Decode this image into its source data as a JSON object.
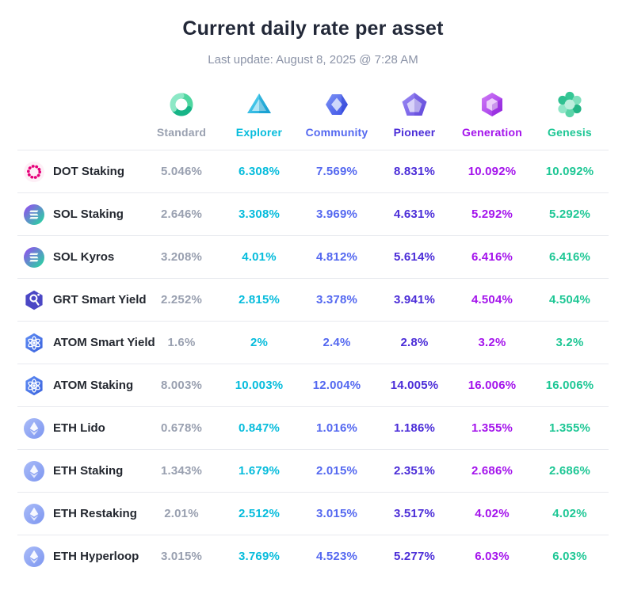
{
  "page": {
    "title": "Current daily rate per asset",
    "subtitle": "Last update: August 8, 2025 @ 7:28 AM"
  },
  "tiers": [
    {
      "label": "Standard",
      "icon": "standard-tier-icon",
      "color": "#99a0b0"
    },
    {
      "label": "Explorer",
      "icon": "explorer-tier-icon",
      "color": "#06bcdc"
    },
    {
      "label": "Community",
      "icon": "community-tier-icon",
      "color": "#5468f0"
    },
    {
      "label": "Pioneer",
      "icon": "pioneer-tier-icon",
      "color": "#4b2dd8"
    },
    {
      "label": "Generation",
      "icon": "generation-tier-icon",
      "color": "#a413ec"
    },
    {
      "label": "Genesis",
      "icon": "genesis-tier-icon",
      "color": "#1ec795"
    }
  ],
  "rows": [
    {
      "asset": "DOT Staking",
      "icon": "polkadot-icon",
      "rates": [
        "5.046%",
        "6.308%",
        "7.569%",
        "8.831%",
        "10.092%",
        "10.092%"
      ]
    },
    {
      "asset": "SOL Staking",
      "icon": "solana-icon",
      "rates": [
        "2.646%",
        "3.308%",
        "3.969%",
        "4.631%",
        "5.292%",
        "5.292%"
      ]
    },
    {
      "asset": "SOL Kyros",
      "icon": "solana-icon",
      "rates": [
        "3.208%",
        "4.01%",
        "4.812%",
        "5.614%",
        "6.416%",
        "6.416%"
      ]
    },
    {
      "asset": "GRT Smart Yield",
      "icon": "graph-icon",
      "rates": [
        "2.252%",
        "2.815%",
        "3.378%",
        "3.941%",
        "4.504%",
        "4.504%"
      ]
    },
    {
      "asset": "ATOM Smart Yield",
      "icon": "cosmos-icon",
      "rates": [
        "1.6%",
        "2%",
        "2.4%",
        "2.8%",
        "3.2%",
        "3.2%"
      ]
    },
    {
      "asset": "ATOM Staking",
      "icon": "cosmos-icon",
      "rates": [
        "8.003%",
        "10.003%",
        "12.004%",
        "14.005%",
        "16.006%",
        "16.006%"
      ]
    },
    {
      "asset": "ETH Lido",
      "icon": "ethereum-icon",
      "rates": [
        "0.678%",
        "0.847%",
        "1.016%",
        "1.186%",
        "1.355%",
        "1.355%"
      ]
    },
    {
      "asset": "ETH Staking",
      "icon": "ethereum-icon",
      "rates": [
        "1.343%",
        "1.679%",
        "2.015%",
        "2.351%",
        "2.686%",
        "2.686%"
      ]
    },
    {
      "asset": "ETH Restaking",
      "icon": "ethereum-icon",
      "rates": [
        "2.01%",
        "2.512%",
        "3.015%",
        "3.517%",
        "4.02%",
        "4.02%"
      ]
    },
    {
      "asset": "ETH Hyperloop",
      "icon": "ethereum-icon",
      "rates": [
        "3.015%",
        "3.769%",
        "4.523%",
        "5.277%",
        "6.03%",
        "6.03%"
      ]
    }
  ]
}
